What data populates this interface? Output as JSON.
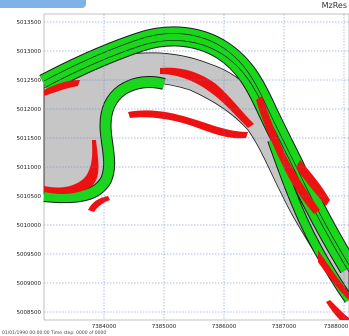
{
  "app": {
    "title": "MzRes",
    "status_text": "01/01/1990 00:00:00  Time step: 0000 of 0000"
  },
  "colors": {
    "background": "#ffffff",
    "grid": "#5b7fd0",
    "land_gray": "#c6c6c6",
    "channel_green": "#19d819",
    "dry_red": "#ee1111",
    "outline": "#1a1a1a",
    "tab_blue": "#7fb2e6"
  },
  "chart_data": {
    "type": "map",
    "ylabels": [
      "5013500",
      "5013000",
      "5012500",
      "5012000",
      "5011500",
      "5011000",
      "5010500",
      "5010000",
      "5009500",
      "5009000",
      "5008500"
    ],
    "xlabels": [
      "7384000",
      "7385000",
      "7386000",
      "7387000",
      "7388000"
    ],
    "legend": []
  }
}
